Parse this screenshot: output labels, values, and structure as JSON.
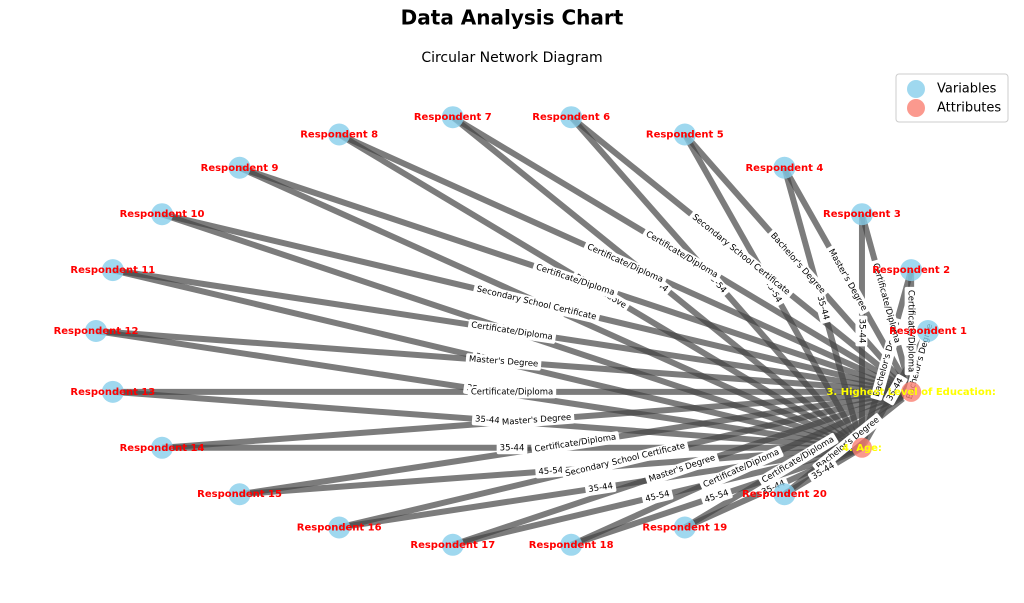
{
  "header": {
    "title": "Data Analysis Chart",
    "subtitle": "Circular Network Diagram"
  },
  "legend": {
    "variables": "Variables",
    "attributes": "Attributes"
  },
  "attributes": {
    "age": "4. Age:",
    "education": "3. Highest Level of Education:"
  },
  "respondents": [
    {
      "label": "Respondent 1",
      "education": "Bachelor's Degree",
      "age": "35-44"
    },
    {
      "label": "Respondent 2",
      "education": "Certificate/Diploma",
      "age": "Bachelor's Degree"
    },
    {
      "label": "Respondent 3",
      "education": "Certificate/Diploma",
      "age": "35-44"
    },
    {
      "label": "Respondent 4",
      "education": "Master's Degree",
      "age": "35-44"
    },
    {
      "label": "Respondent 5",
      "education": "Bachelor's Degree",
      "age": "45-54"
    },
    {
      "label": "Respondent 6",
      "education": "Secondary School Certificate",
      "age": "45-54"
    },
    {
      "label": "Respondent 7",
      "education": "Certificate/Diploma",
      "age": "35-44"
    },
    {
      "label": "Respondent 8",
      "education": "Certificate/Diploma",
      "age": "55 and above"
    },
    {
      "label": "Respondent 9",
      "education": "Certificate/Diploma",
      "age": "45-54"
    },
    {
      "label": "Respondent 10",
      "education": "Secondary School Certificate",
      "age": "35-44"
    },
    {
      "label": "Respondent 11",
      "education": "Certificate/Diploma",
      "age": "35-44"
    },
    {
      "label": "Respondent 12",
      "education": "Master's Degree",
      "age": "35-44"
    },
    {
      "label": "Respondent 13",
      "education": "Certificate/Diploma",
      "age": "35-44"
    },
    {
      "label": "Respondent 14",
      "education": "Master's Degree",
      "age": "35-44"
    },
    {
      "label": "Respondent 15",
      "education": "Certificate/Diploma",
      "age": "45-54"
    },
    {
      "label": "Respondent 16",
      "education": "Secondary School Certificate",
      "age": "35-44"
    },
    {
      "label": "Respondent 17",
      "education": "Master's Degree",
      "age": "45-54"
    },
    {
      "label": "Respondent 18",
      "education": "Certificate/Diploma",
      "age": "45-54"
    },
    {
      "label": "Respondent 19",
      "education": "Certificate/Diploma",
      "age": "35-44"
    },
    {
      "label": "Respondent 20",
      "education": "Bachelor's Degree",
      "age": "35-44"
    }
  ]
}
